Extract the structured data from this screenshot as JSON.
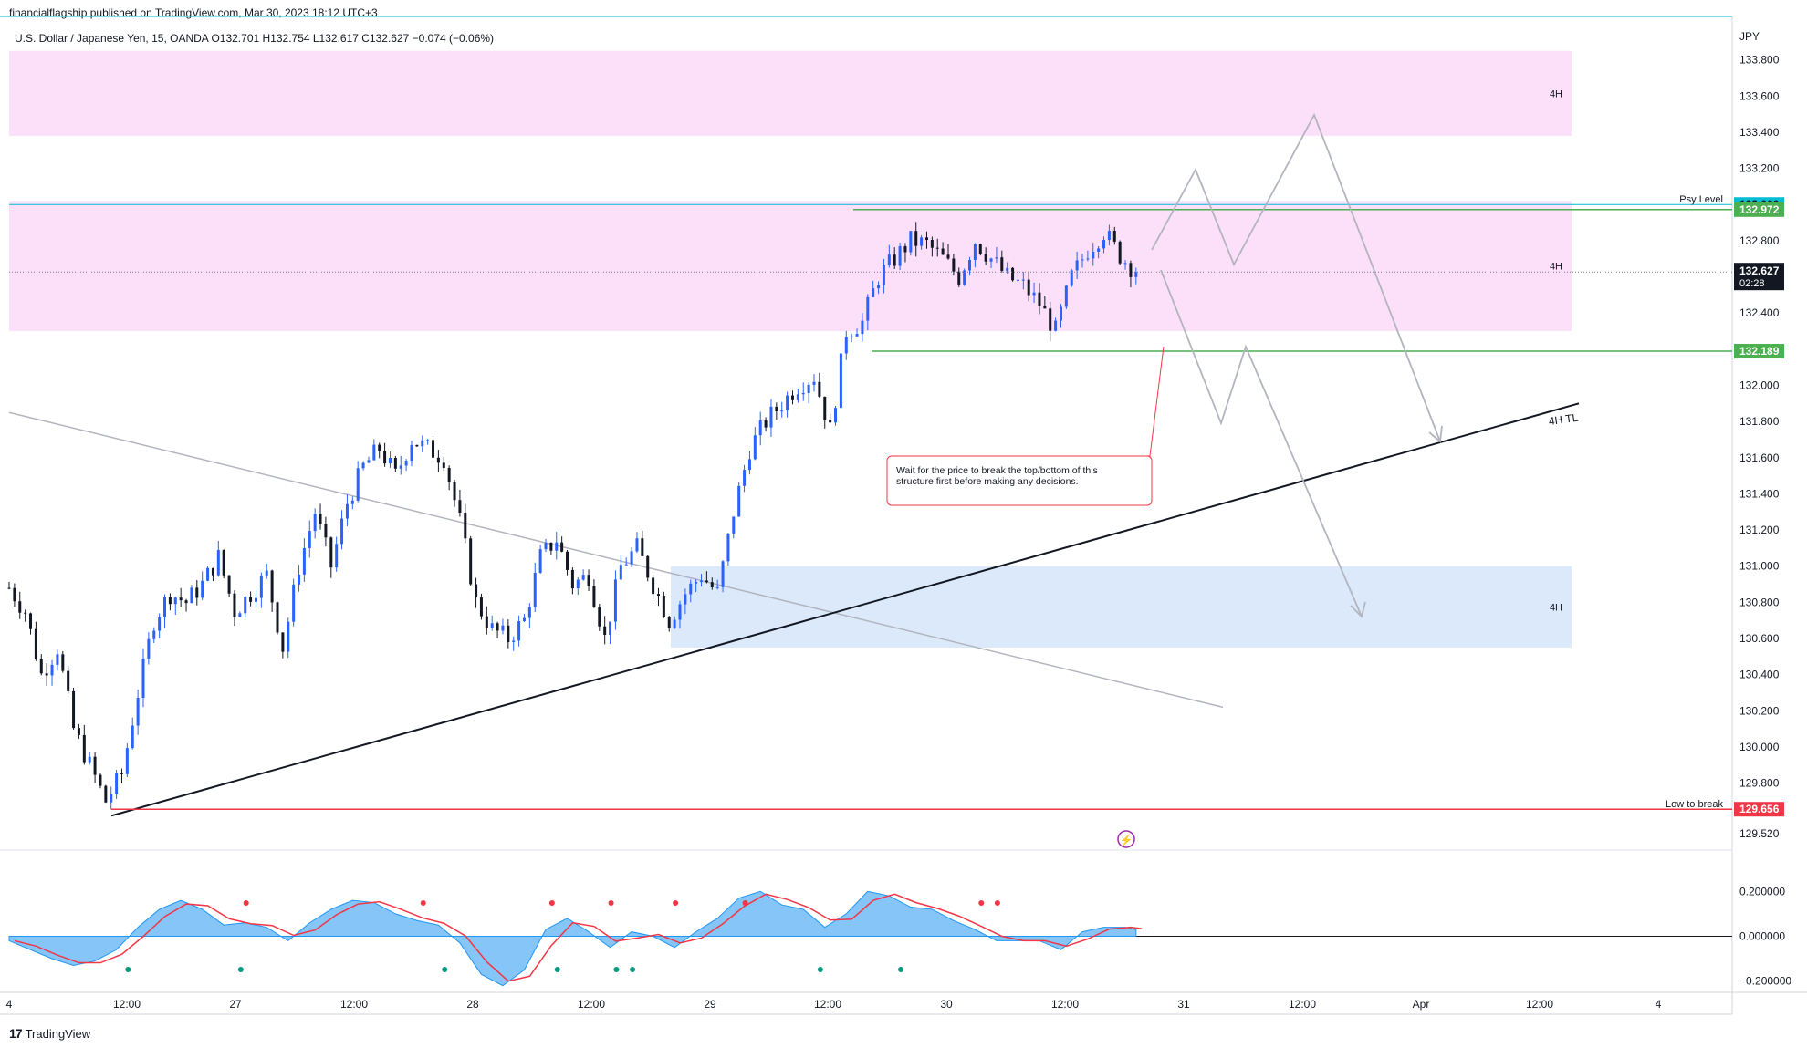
{
  "header": {
    "publisher": "financialflagship published on TradingView.com, Mar 30, 2023 18:12 UTC+3",
    "symbol": "U.S. Dollar / Japanese Yen, 15, OANDA  O132.701  H132.754  L132.617  C132.627  −0.074 (−0.06%)"
  },
  "footer": {
    "brand": "TradingView",
    "brand_mark": "17"
  },
  "colors": {
    "up": "#2962ff",
    "down": "#131722",
    "zone_pink": "#fce0fa",
    "zone_blue": "#dce9fb",
    "psy": "#00bcd4",
    "green_line": "#4caf50",
    "red_line": "#f23645",
    "arrow": "#b2b5be",
    "trendline_gray": "#b2b5be",
    "macd_line": "#f23645",
    "macd_area": "#2196f3"
  },
  "chart_data": {
    "type": "line",
    "title": "U.S. Dollar / Japanese Yen, 15, OANDA",
    "currency": "JPY",
    "ohlc": {
      "open": 132.701,
      "high": 132.754,
      "low": 132.617,
      "close": 132.627,
      "change": "−0.074 (−0.06%)"
    },
    "x_tick_labels": [
      "4",
      "12:00",
      "27",
      "12:00",
      "28",
      "12:00",
      "29",
      "12:00",
      "30",
      "12:00",
      "31",
      "12:00",
      "Apr",
      "12:00",
      "4"
    ],
    "y_tick_labels": [
      "133.800",
      "133.600",
      "133.400",
      "133.200",
      "132.800",
      "132.600",
      "132.400",
      "132.000",
      "131.800",
      "131.600",
      "131.400",
      "131.200",
      "131.000",
      "130.800",
      "130.600",
      "130.400",
      "130.200",
      "130.000",
      "129.800",
      "129.520"
    ],
    "ylim": [
      129.43,
      134.0
    ],
    "price_path": [
      [
        0,
        130.88
      ],
      [
        3,
        130.75
      ],
      [
        6,
        130.4
      ],
      [
        9,
        130.55
      ],
      [
        12,
        130.1
      ],
      [
        15,
        129.9
      ],
      [
        18,
        129.7
      ],
      [
        21,
        129.85
      ],
      [
        24,
        130.3
      ],
      [
        27,
        130.7
      ],
      [
        30,
        130.85
      ],
      [
        33,
        130.8
      ],
      [
        36,
        130.9
      ],
      [
        39,
        131.05
      ],
      [
        42,
        130.75
      ],
      [
        45,
        130.85
      ],
      [
        48,
        130.95
      ],
      [
        51,
        130.55
      ],
      [
        54,
        131.0
      ],
      [
        57,
        131.3
      ],
      [
        60,
        131.0
      ],
      [
        63,
        131.35
      ],
      [
        66,
        131.55
      ],
      [
        69,
        131.65
      ],
      [
        72,
        131.5
      ],
      [
        75,
        131.7
      ],
      [
        78,
        131.65
      ],
      [
        81,
        131.6
      ],
      [
        84,
        131.25
      ],
      [
        87,
        130.8
      ],
      [
        90,
        130.65
      ],
      [
        93,
        130.6
      ],
      [
        96,
        130.7
      ],
      [
        99,
        131.05
      ],
      [
        102,
        131.15
      ],
      [
        105,
        130.9
      ],
      [
        108,
        130.95
      ],
      [
        111,
        130.6
      ],
      [
        114,
        131.0
      ],
      [
        117,
        131.1
      ],
      [
        120,
        130.9
      ],
      [
        123,
        130.7
      ],
      [
        126,
        130.85
      ],
      [
        129,
        130.95
      ],
      [
        132,
        130.85
      ],
      [
        135,
        131.3
      ],
      [
        138,
        131.65
      ],
      [
        141,
        131.8
      ],
      [
        144,
        131.9
      ],
      [
        147,
        132.0
      ],
      [
        150,
        132.05
      ],
      [
        153,
        131.75
      ],
      [
        156,
        132.3
      ],
      [
        159,
        132.35
      ],
      [
        162,
        132.6
      ],
      [
        165,
        132.7
      ],
      [
        168,
        132.8
      ],
      [
        171,
        132.78
      ],
      [
        174,
        132.7
      ],
      [
        177,
        132.6
      ],
      [
        180,
        132.8
      ],
      [
        183,
        132.7
      ],
      [
        186,
        132.6
      ],
      [
        189,
        132.55
      ],
      [
        192,
        132.45
      ],
      [
        195,
        132.3
      ],
      [
        198,
        132.6
      ],
      [
        201,
        132.75
      ],
      [
        204,
        132.85
      ],
      [
        207,
        132.72
      ],
      [
        210,
        132.627
      ]
    ],
    "levels": [
      {
        "label": "Psy Level",
        "price": 133.0
      },
      {
        "label": "",
        "price": 132.972
      },
      {
        "label": "",
        "price": 132.189
      },
      {
        "label": "Low to break",
        "price": 129.656
      }
    ],
    "current_price": "132.627",
    "countdown": "02:28",
    "zones": [
      {
        "label": "4H",
        "top": 133.85,
        "bottom": 133.38
      },
      {
        "label": "4H",
        "top": 133.02,
        "bottom": 132.3
      },
      {
        "label": "4H",
        "top": 131.0,
        "bottom": 130.55
      }
    ],
    "trendline_label": "4H TL",
    "note": "Wait for the price to break the top/bottom of this structure first before making any decisions.",
    "macd": {
      "y_tick_labels": [
        "0.200000",
        "0.000000",
        "−0.200000"
      ],
      "ylim": [
        -0.25,
        0.25
      ],
      "histogram": [
        [
          0,
          -0.02
        ],
        [
          4,
          -0.06
        ],
        [
          8,
          -0.1
        ],
        [
          12,
          -0.13
        ],
        [
          16,
          -0.11
        ],
        [
          20,
          -0.06
        ],
        [
          24,
          0.04
        ],
        [
          28,
          0.12
        ],
        [
          32,
          0.16
        ],
        [
          36,
          0.12
        ],
        [
          40,
          0.05
        ],
        [
          44,
          0.06
        ],
        [
          48,
          0.04
        ],
        [
          52,
          -0.02
        ],
        [
          56,
          0.06
        ],
        [
          60,
          0.12
        ],
        [
          64,
          0.16
        ],
        [
          68,
          0.15
        ],
        [
          72,
          0.1
        ],
        [
          76,
          0.07
        ],
        [
          80,
          0.05
        ],
        [
          84,
          -0.03
        ],
        [
          88,
          -0.17
        ],
        [
          92,
          -0.22
        ],
        [
          96,
          -0.15
        ],
        [
          100,
          0.03
        ],
        [
          104,
          0.08
        ],
        [
          108,
          0.02
        ],
        [
          112,
          -0.05
        ],
        [
          116,
          0.02
        ],
        [
          120,
          0.0
        ],
        [
          124,
          -0.05
        ],
        [
          128,
          0.02
        ],
        [
          132,
          0.08
        ],
        [
          136,
          0.17
        ],
        [
          140,
          0.2
        ],
        [
          144,
          0.14
        ],
        [
          148,
          0.12
        ],
        [
          152,
          0.04
        ],
        [
          156,
          0.1
        ],
        [
          160,
          0.2
        ],
        [
          164,
          0.18
        ],
        [
          168,
          0.13
        ],
        [
          172,
          0.12
        ],
        [
          176,
          0.07
        ],
        [
          180,
          0.03
        ],
        [
          184,
          -0.02
        ],
        [
          188,
          -0.02
        ],
        [
          192,
          -0.02
        ],
        [
          196,
          -0.06
        ],
        [
          200,
          0.02
        ],
        [
          204,
          0.04
        ],
        [
          208,
          0.04
        ],
        [
          210,
          0.03
        ]
      ]
    }
  }
}
